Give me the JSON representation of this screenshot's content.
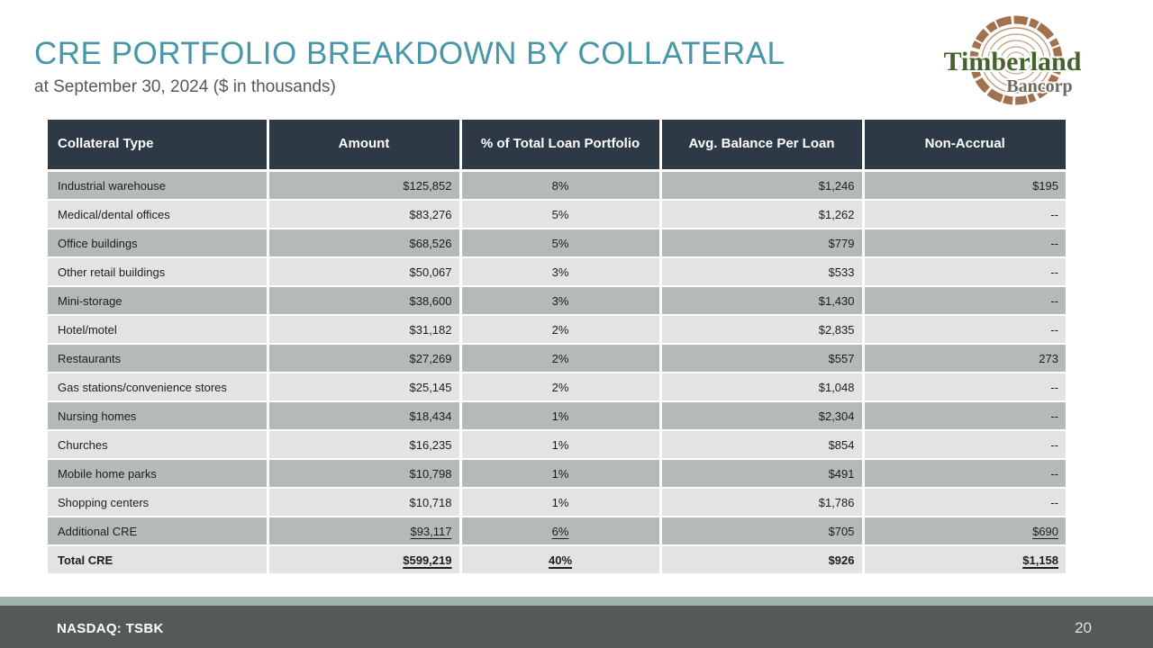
{
  "slide": {
    "title": "CRE PORTFOLIO BREAKDOWN BY COLLATERAL",
    "subtitle": "at September 30, 2024 ($ in thousands)",
    "ticker": "NASDAQ: TSBK",
    "page_number": "20"
  },
  "logo": {
    "name": "Timberland",
    "sub": "Bancorp"
  },
  "colors": {
    "title_teal": "#4797a9",
    "header_bg": "#2d3a46",
    "row_dark": "#b3bab9",
    "row_light": "#e1e4e3",
    "footer_bar": "#545a59",
    "footer_strip": "#9fb3ac",
    "logo_green": "#44632c",
    "logo_brown": "#a2724f",
    "logo_gray": "#6d675e"
  },
  "table": {
    "columns": [
      "Collateral Type",
      "Amount",
      "% of Total Loan Portfolio",
      "Avg. Balance Per Loan",
      "Non-Accrual"
    ],
    "rows": [
      {
        "type": "Industrial warehouse",
        "amount": "$125,852",
        "pct": "8%",
        "avg": "$1,246",
        "non_accrual": "$195"
      },
      {
        "type": "Medical/dental offices",
        "amount": "$83,276",
        "pct": "5%",
        "avg": "$1,262",
        "non_accrual": "--"
      },
      {
        "type": "Office buildings",
        "amount": "$68,526",
        "pct": "5%",
        "avg": "$779",
        "non_accrual": "--"
      },
      {
        "type": "Other retail buildings",
        "amount": "$50,067",
        "pct": "3%",
        "avg": "$533",
        "non_accrual": "--"
      },
      {
        "type": "Mini-storage",
        "amount": "$38,600",
        "pct": "3%",
        "avg": "$1,430",
        "non_accrual": "--"
      },
      {
        "type": "Hotel/motel",
        "amount": "$31,182",
        "pct": "2%",
        "avg": "$2,835",
        "non_accrual": "--"
      },
      {
        "type": "Restaurants",
        "amount": "$27,269",
        "pct": "2%",
        "avg": "$557",
        "non_accrual": "273"
      },
      {
        "type": "Gas stations/convenience stores",
        "amount": "$25,145",
        "pct": "2%",
        "avg": "$1,048",
        "non_accrual": "--"
      },
      {
        "type": "Nursing homes",
        "amount": "$18,434",
        "pct": "1%",
        "avg": "$2,304",
        "non_accrual": "--"
      },
      {
        "type": "Churches",
        "amount": "$16,235",
        "pct": "1%",
        "avg": "$854",
        "non_accrual": "--"
      },
      {
        "type": "Mobile home parks",
        "amount": "$10,798",
        "pct": "1%",
        "avg": "$491",
        "non_accrual": "--"
      },
      {
        "type": "Shopping centers",
        "amount": "$10,718",
        "pct": "1%",
        "avg": "$1,786",
        "non_accrual": "--"
      },
      {
        "type": "Additional CRE",
        "amount": "$93,117",
        "pct": "6%",
        "avg": "$705",
        "non_accrual": "$690",
        "underline": [
          "amount",
          "pct",
          "non_accrual"
        ]
      },
      {
        "type": "Total CRE",
        "amount": "$599,219",
        "pct": "40%",
        "avg": "$926",
        "non_accrual": "$1,158",
        "style": "total",
        "underline": [
          "amount",
          "pct",
          "non_accrual"
        ]
      }
    ]
  }
}
